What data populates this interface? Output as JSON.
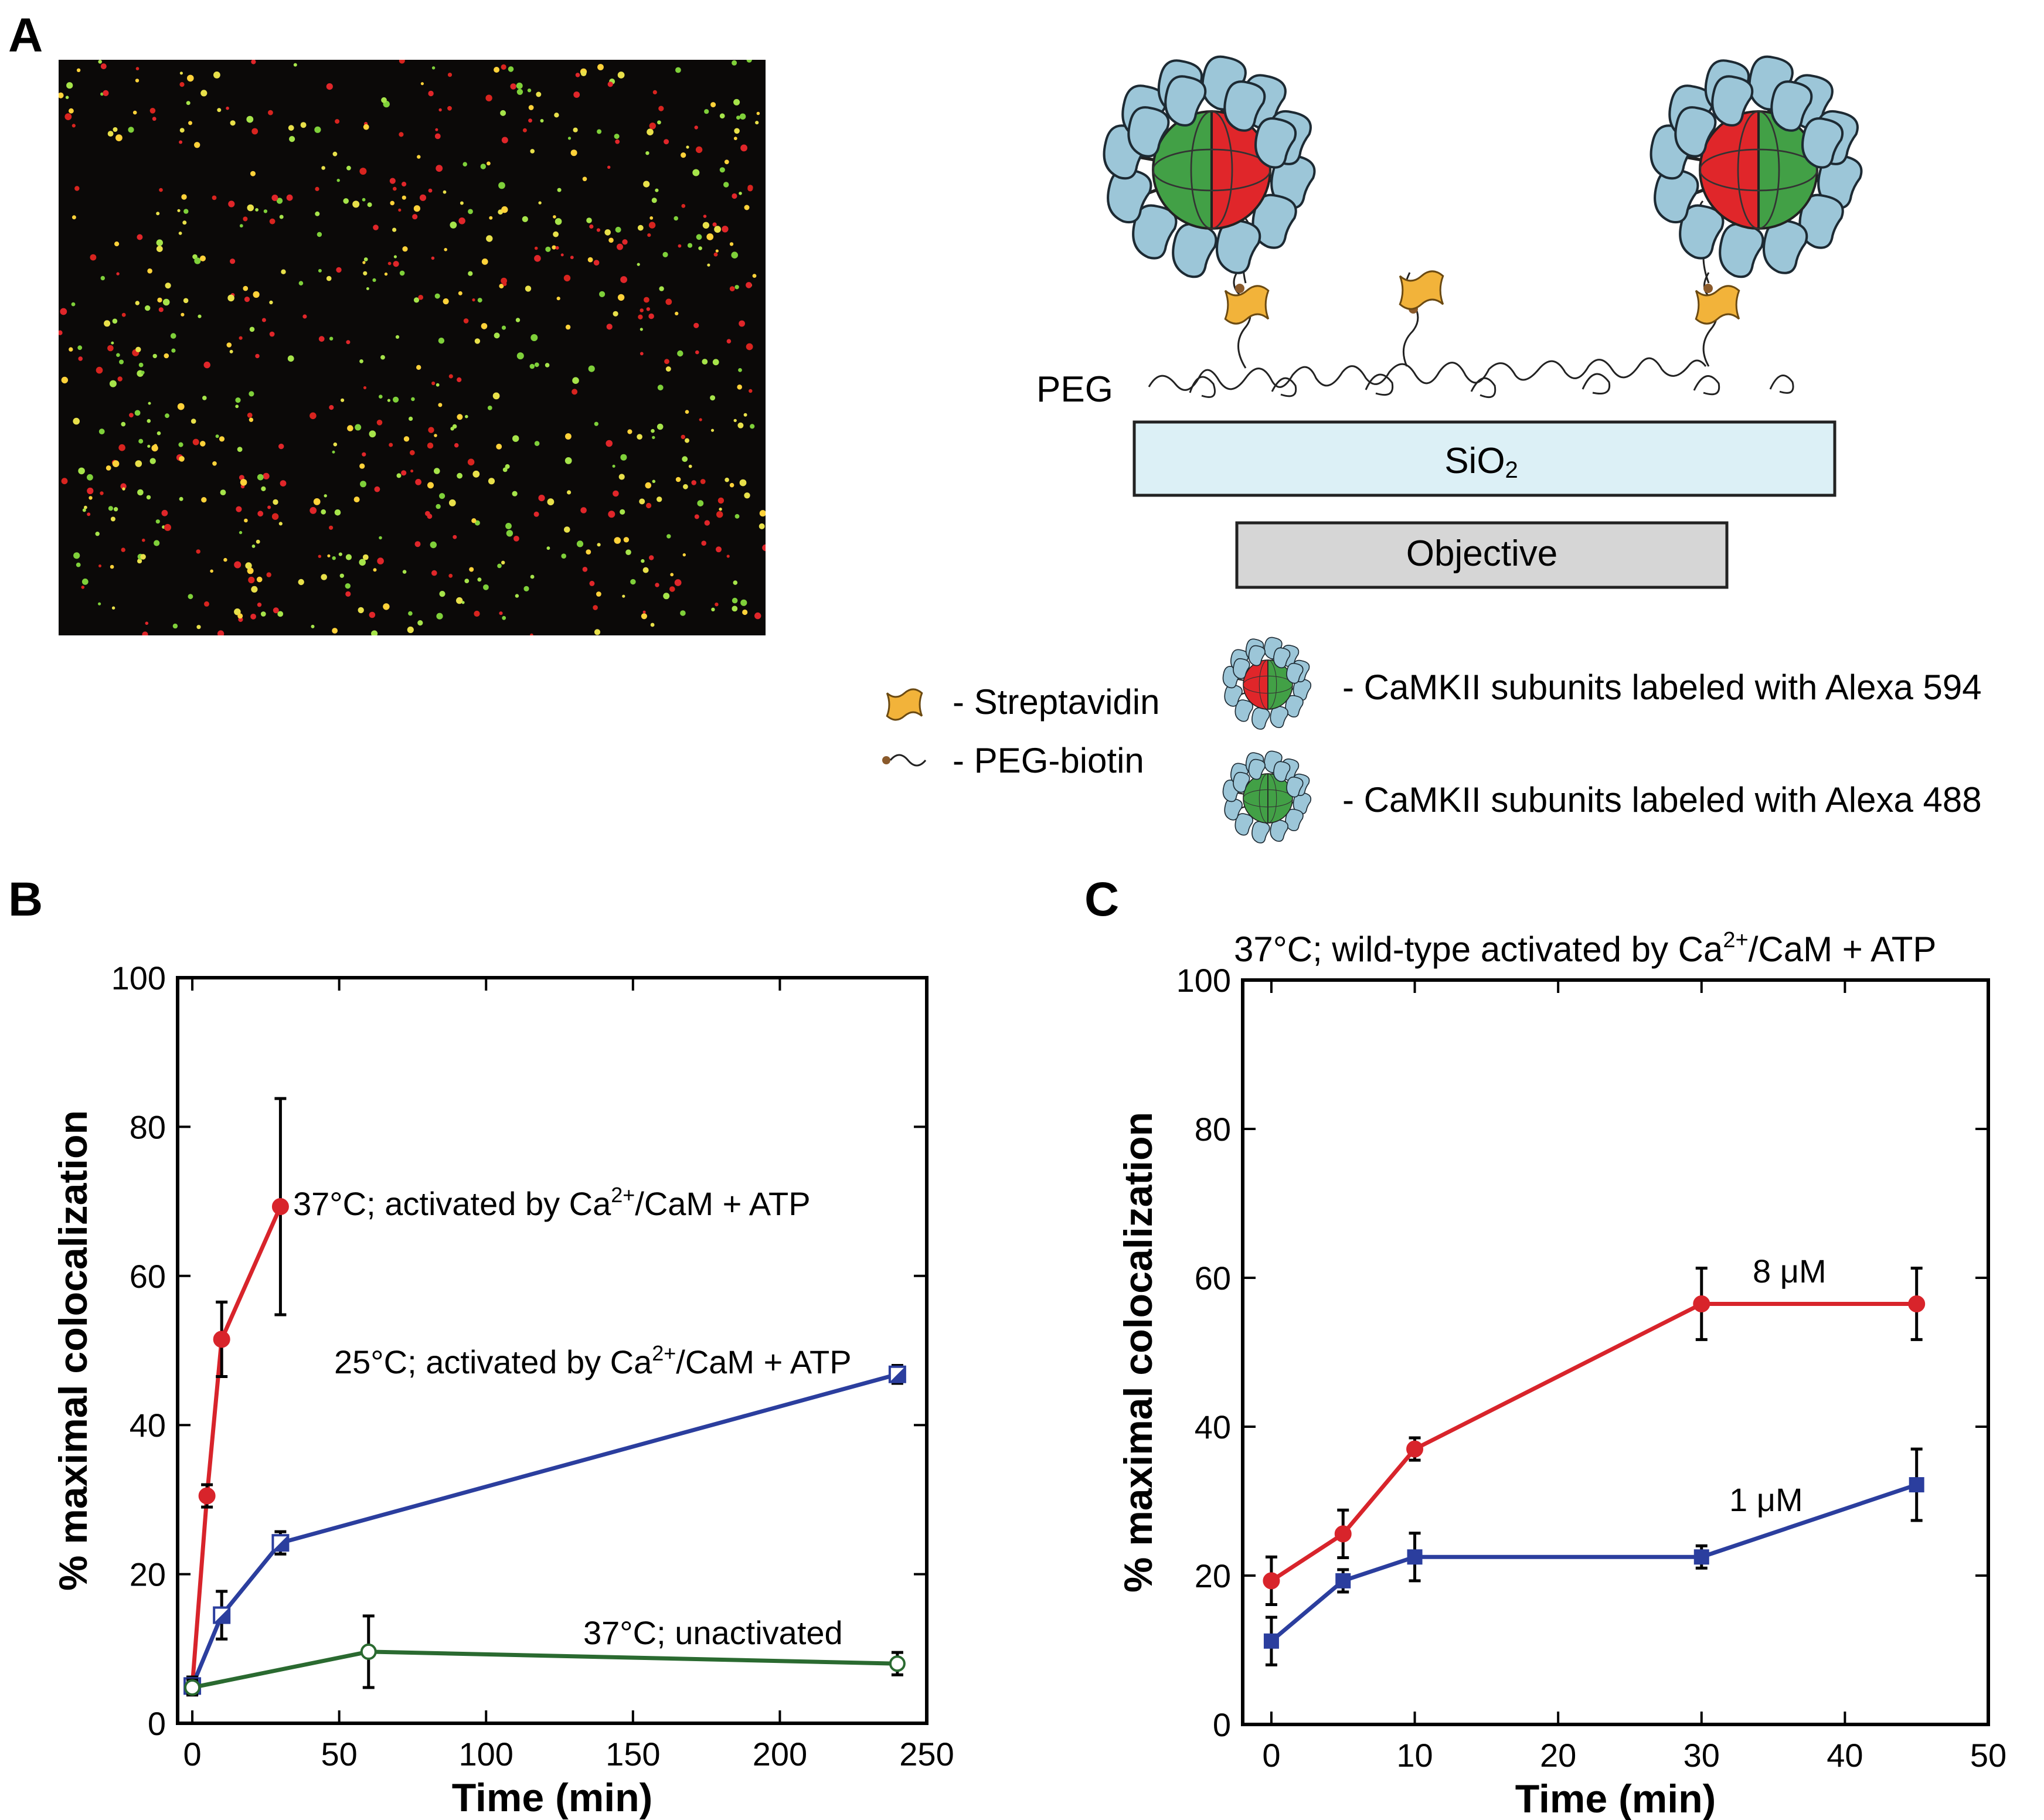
{
  "panels": {
    "a": {
      "letter": "A",
      "schematic": {
        "peg": "PEG",
        "surface": "SiO",
        "surface_sub": "2",
        "objective": "Objective"
      },
      "legend": {
        "streptavidin": "- Streptavidin",
        "peg_biotin": "- PEG-biotin",
        "alexa594": "- CaMKII subunits labeled with Alexa 594",
        "alexa488": "- CaMKII subunits labeled with Alexa 488"
      },
      "colors": {
        "red_dye": "#e0262a",
        "green_dye": "#42a046",
        "subunit": "#9cc6d8",
        "streptavidin": "#f2b33a",
        "surface": "#dcf0f6",
        "objective": "#d6d6d6"
      }
    },
    "b": {
      "letter": "B"
    },
    "c": {
      "letter": "C"
    }
  },
  "chart_data": [
    {
      "panel": "B",
      "type": "line",
      "title": "",
      "xlabel": "Time (min)",
      "ylabel": "% maximal colocalization",
      "xlim": [
        -5,
        250
      ],
      "ylim": [
        0,
        100
      ],
      "xticks": [
        0,
        50,
        100,
        150,
        200,
        250
      ],
      "yticks": [
        0,
        20,
        40,
        60,
        80,
        100
      ],
      "grid": false,
      "series": [
        {
          "label": "37°C; activated by Ca²⁺/CaM + ATP",
          "label_main": "37°C; activated by Ca",
          "label_sup": "2+",
          "label_tail": "/CaM + ATP",
          "color": "#d8242b",
          "marker": "filled-circle",
          "x": [
            0,
            5,
            10,
            30
          ],
          "y": [
            5,
            30.5,
            51.5,
            69.3
          ],
          "err": [
            1.2,
            1.5,
            5,
            14.5
          ]
        },
        {
          "label": "25°C; activated by Ca²⁺/CaM + ATP",
          "label_main": "25°C; activated by Ca",
          "label_sup": "2+",
          "label_tail": "/CaM + ATP",
          "color": "#2b3e9e",
          "marker": "half-square",
          "x": [
            0,
            10,
            30,
            240
          ],
          "y": [
            5,
            14.5,
            24.2,
            46.8
          ],
          "err": [
            1.2,
            3.2,
            1.5,
            1.2
          ]
        },
        {
          "label": "37°C; unactivated",
          "color": "#2a6a30",
          "marker": "open-circle",
          "x": [
            0,
            60,
            240
          ],
          "y": [
            4.8,
            9.6,
            8
          ],
          "err": [
            1,
            4.8,
            1.5
          ]
        }
      ]
    },
    {
      "panel": "C",
      "type": "line",
      "title": "37°C; wild-type activated by Ca²⁺/CaM + ATP",
      "title_main": "37°C; wild-type activated by Ca",
      "title_sup": "2+",
      "title_tail": "/CaM + ATP",
      "xlabel": "Time (min)",
      "ylabel": "% maximal colocalization",
      "xlim": [
        -2,
        50
      ],
      "ylim": [
        0,
        100
      ],
      "xticks": [
        0,
        10,
        20,
        30,
        40,
        50
      ],
      "yticks": [
        0,
        20,
        40,
        60,
        80,
        100
      ],
      "grid": false,
      "series": [
        {
          "label": "8 μM",
          "color": "#d8242b",
          "marker": "filled-circle",
          "x": [
            0,
            5,
            10,
            30,
            45
          ],
          "y": [
            19.3,
            25.6,
            37,
            56.5,
            56.5
          ],
          "err": [
            3.2,
            3.2,
            1.5,
            4.8,
            4.8
          ]
        },
        {
          "label": "1 μM",
          "color": "#2b3e9e",
          "marker": "filled-square",
          "x": [
            0,
            5,
            10,
            30,
            45
          ],
          "y": [
            11.2,
            19.3,
            22.5,
            22.5,
            32.2
          ],
          "err": [
            3.2,
            1.5,
            3.2,
            1.5,
            4.8
          ]
        }
      ]
    }
  ]
}
